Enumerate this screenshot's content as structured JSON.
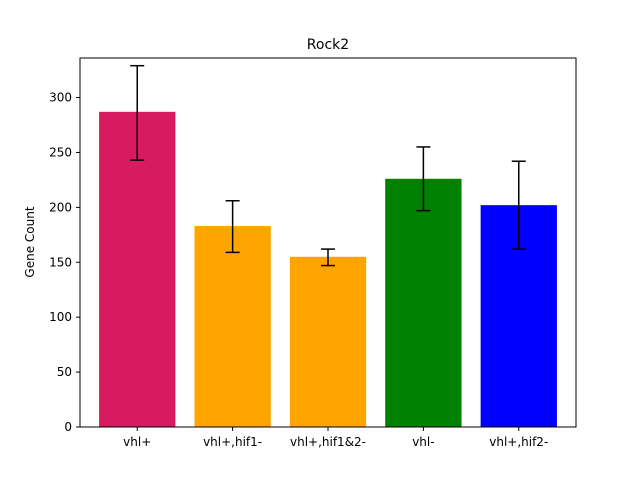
{
  "chart_data": {
    "type": "bar",
    "title": "Rock2",
    "xlabel": "",
    "ylabel": "Gene Count",
    "categories": [
      "vhl+",
      "vhl+,hif1-",
      "vhl+,hif1&2-",
      "vhl-",
      "vhl+,hif2-"
    ],
    "values": [
      287,
      183,
      155,
      226,
      202
    ],
    "errors_low": [
      243,
      159,
      147,
      197,
      162
    ],
    "errors_high": [
      329,
      206,
      162,
      255,
      242
    ],
    "colors": [
      "#d81b60",
      "#ffa500",
      "#ffa500",
      "#008000",
      "#0000ff"
    ],
    "ylim": [
      0,
      336
    ],
    "yticks": [
      0,
      50,
      100,
      150,
      200,
      250,
      300
    ],
    "grid": false,
    "legend": "none"
  }
}
